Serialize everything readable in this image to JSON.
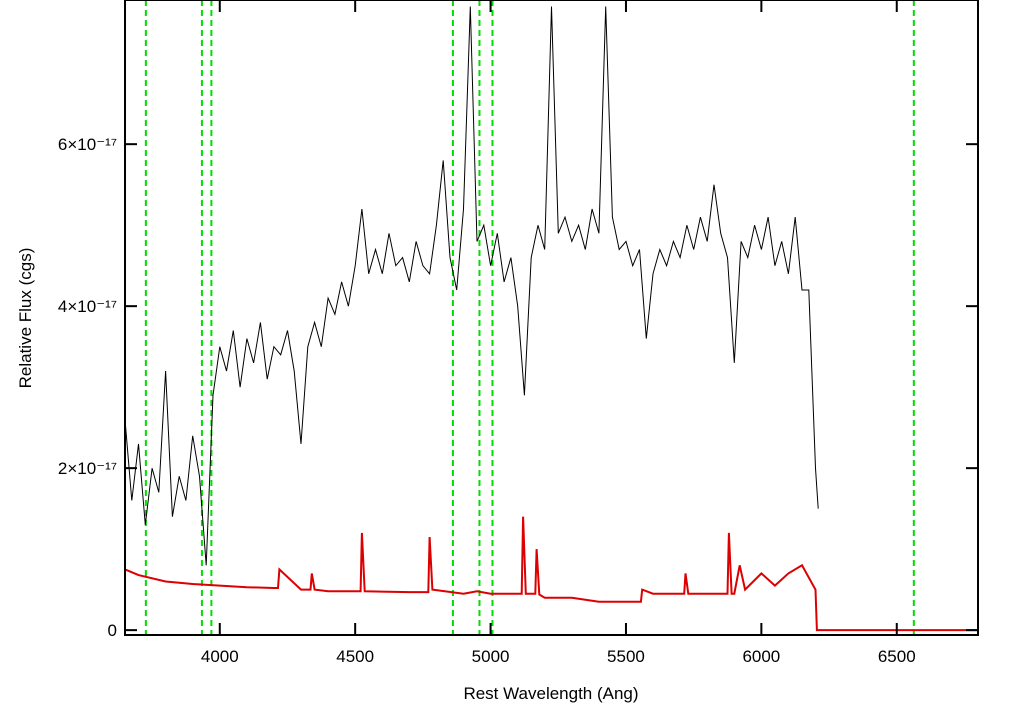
{
  "chart_data": {
    "type": "line",
    "x_label": "Rest Wavelength (Ang)",
    "y_label": "Relative Flux (cgs)",
    "xlim": [
      3650,
      6800
    ],
    "xticks": [
      4000,
      4500,
      5000,
      5500,
      6000,
      6500
    ],
    "ylim": [
      -6e-19,
      7.78e-17
    ],
    "yticks": [
      0,
      {
        "value": 2e-17,
        "label": "2×10⁻¹⁷"
      },
      {
        "value": 4e-17,
        "label": "4×10⁻¹⁷"
      },
      {
        "value": 6e-17,
        "label": "6×10⁻¹⁷"
      }
    ],
    "vlines": [
      3727,
      3934,
      3969,
      4861,
      4959,
      5007,
      6563
    ],
    "vline_color": "#00dd00",
    "series": [
      {
        "color": "#000000",
        "x": [
          3650,
          3675,
          3700,
          3725,
          3750,
          3775,
          3800,
          3825,
          3850,
          3875,
          3900,
          3925,
          3950,
          3975,
          4000,
          4025,
          4050,
          4075,
          4100,
          4125,
          4150,
          4175,
          4200,
          4225,
          4250,
          4275,
          4300,
          4325,
          4350,
          4375,
          4400,
          4425,
          4450,
          4475,
          4500,
          4525,
          4550,
          4575,
          4600,
          4625,
          4650,
          4675,
          4700,
          4725,
          4750,
          4775,
          4800,
          4825,
          4850,
          4875,
          4900,
          4925,
          4950,
          4975,
          5000,
          5025,
          5050,
          5075,
          5100,
          5125,
          5150,
          5175,
          5200,
          5225,
          5250,
          5275,
          5300,
          5325,
          5350,
          5375,
          5400,
          5425,
          5450,
          5475,
          5500,
          5525,
          5550,
          5575,
          5600,
          5625,
          5650,
          5675,
          5700,
          5725,
          5750,
          5775,
          5800,
          5825,
          5850,
          5875,
          5900,
          5925,
          5950,
          5975,
          6000,
          6025,
          6050,
          6075,
          6100,
          6125,
          6150,
          6175,
          6200,
          6210
        ],
        "values": [
          2.6e-17,
          1.6e-17,
          2.3e-17,
          1.3e-17,
          2e-17,
          1.7e-17,
          3.2e-17,
          1.4e-17,
          1.9e-17,
          1.6e-17,
          2.4e-17,
          1.9e-17,
          8e-18,
          2.9e-17,
          3.5e-17,
          3.2e-17,
          3.7e-17,
          3e-17,
          3.6e-17,
          3.3e-17,
          3.8e-17,
          3.1e-17,
          3.5e-17,
          3.4e-17,
          3.7e-17,
          3.2e-17,
          2.3e-17,
          3.5e-17,
          3.8e-17,
          3.5e-17,
          4.1e-17,
          3.9e-17,
          4.3e-17,
          4e-17,
          4.5e-17,
          5.2e-17,
          4.4e-17,
          4.7e-17,
          4.4e-17,
          4.9e-17,
          4.5e-17,
          4.6e-17,
          4.3e-17,
          4.8e-17,
          4.5e-17,
          4.4e-17,
          5e-17,
          5.8e-17,
          4.6e-17,
          4.2e-17,
          5.2e-17,
          7.7e-17,
          4.8e-17,
          5e-17,
          4.5e-17,
          4.9e-17,
          4.3e-17,
          4.6e-17,
          4e-17,
          2.9e-17,
          4.6e-17,
          5e-17,
          4.7e-17,
          7.7e-17,
          4.9e-17,
          5.1e-17,
          4.8e-17,
          5e-17,
          4.7e-17,
          5.2e-17,
          4.9e-17,
          7.7e-17,
          5.1e-17,
          4.7e-17,
          4.8e-17,
          4.5e-17,
          4.7e-17,
          3.6e-17,
          4.4e-17,
          4.7e-17,
          4.5e-17,
          4.8e-17,
          4.6e-17,
          5e-17,
          4.7e-17,
          5.1e-17,
          4.8e-17,
          5.5e-17,
          4.9e-17,
          4.6e-17,
          3.3e-17,
          4.8e-17,
          4.6e-17,
          5e-17,
          4.7e-17,
          5.1e-17,
          4.5e-17,
          4.8e-17,
          4.4e-17,
          5.1e-17,
          4.2e-17,
          4.2e-17,
          2e-17,
          1.5e-17
        ]
      },
      {
        "color": "#dd0000",
        "x": [
          3650,
          3700,
          3800,
          3900,
          4000,
          4100,
          4200,
          4215,
          4220,
          4300,
          4335,
          4340,
          4350,
          4400,
          4500,
          4520,
          4525,
          4535,
          4700,
          4770,
          4775,
          4785,
          4900,
          4950,
          5000,
          5100,
          5115,
          5120,
          5130,
          5165,
          5170,
          5180,
          5200,
          5300,
          5400,
          5500,
          5550,
          5555,
          5560,
          5600,
          5700,
          5715,
          5720,
          5730,
          5800,
          5875,
          5880,
          5890,
          5900,
          5920,
          5940,
          6000,
          6050,
          6100,
          6150,
          6200,
          6205,
          6800
        ],
        "values": [
          7.5e-18,
          6.8e-18,
          6e-18,
          5.7e-18,
          5.5e-18,
          5.3e-18,
          5.2e-18,
          5.2e-18,
          7.5e-18,
          5e-18,
          5e-18,
          7e-18,
          5e-18,
          4.8e-18,
          4.8e-18,
          4.8e-18,
          1.2e-17,
          4.8e-18,
          4.7e-18,
          4.7e-18,
          1.15e-17,
          5e-18,
          4.5e-18,
          4.8e-18,
          4.5e-18,
          4.5e-18,
          4.5e-18,
          1.4e-17,
          4.5e-18,
          4.5e-18,
          1e-17,
          4.4e-18,
          4e-18,
          4e-18,
          3.5e-18,
          3.5e-18,
          3.5e-18,
          3.5e-18,
          5e-18,
          4.5e-18,
          4.5e-18,
          4.5e-18,
          7e-18,
          4.5e-18,
          4.5e-18,
          4.5e-18,
          1.2e-17,
          4.5e-18,
          4.5e-18,
          8e-18,
          5e-18,
          7e-18,
          5.5e-18,
          7e-18,
          8e-18,
          5e-18,
          0,
          0
        ]
      }
    ]
  }
}
